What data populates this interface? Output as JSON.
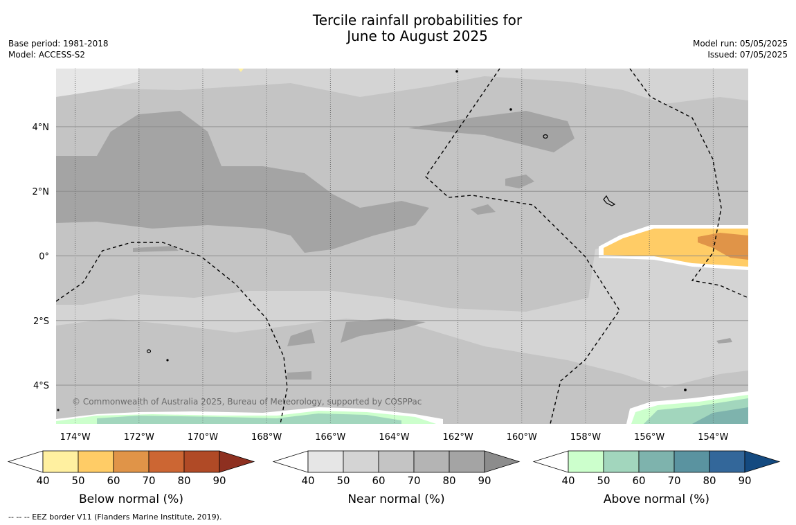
{
  "title_line1": "Tercile rainfall probabilities for",
  "title_line2": "June to August 2025",
  "base_period": "Base period: 1981-2018",
  "model": "Model: ACCESS-S2",
  "model_run": "Model run: 05/05/2025",
  "issued": "Issued: 07/05/2025",
  "copyright": "© Commonwealth of Australia 2025, Bureau of Meteorology, supported by COSPPac",
  "footer": "--  --  -- EEZ border V11 (Flanders Marine Institute, 2019).",
  "map": {
    "lon_range": [
      -174.6,
      -152.9
    ],
    "lat_range": [
      -5.2,
      5.8
    ],
    "lon_ticks": [
      {
        "value": -174,
        "label": "174°W"
      },
      {
        "value": -172,
        "label": "172°W"
      },
      {
        "value": -170,
        "label": "170°W"
      },
      {
        "value": -168,
        "label": "168°W"
      },
      {
        "value": -166,
        "label": "166°W"
      },
      {
        "value": -164,
        "label": "164°W"
      },
      {
        "value": -162,
        "label": "162°W"
      },
      {
        "value": -160,
        "label": "160°W"
      },
      {
        "value": -158,
        "label": "158°W"
      },
      {
        "value": -156,
        "label": "156°W"
      },
      {
        "value": -154,
        "label": "154°W"
      }
    ],
    "lat_ticks": [
      {
        "value": 4,
        "label": "4°N"
      },
      {
        "value": 2,
        "label": "2°N"
      },
      {
        "value": 0,
        "label": "0°"
      },
      {
        "value": -2,
        "label": "2°S"
      },
      {
        "value": -4,
        "label": "4°S"
      }
    ]
  },
  "colorbars": [
    {
      "title": "Below normal (%)",
      "ticks": [
        "40",
        "50",
        "60",
        "70",
        "80",
        "90"
      ],
      "colors": [
        "#ffffff",
        "#fff0a0",
        "#ffcc66",
        "#e09448",
        "#cc6633",
        "#b04a26",
        "#8e3020"
      ]
    },
    {
      "title": "Near normal (%)",
      "ticks": [
        "40",
        "50",
        "60",
        "70",
        "80",
        "90"
      ],
      "colors": [
        "#ffffff",
        "#e6e6e6",
        "#d4d4d4",
        "#c4c4c4",
        "#b4b4b4",
        "#a4a4a4",
        "#8c8c8c"
      ]
    },
    {
      "title": "Above normal (%)",
      "ticks": [
        "40",
        "50",
        "60",
        "70",
        "80",
        "90"
      ],
      "colors": [
        "#ffffff",
        "#ccffcc",
        "#a2d6bd",
        "#7eb3ad",
        "#5a93a0",
        "#33679a",
        "#144a80"
      ]
    }
  ]
}
